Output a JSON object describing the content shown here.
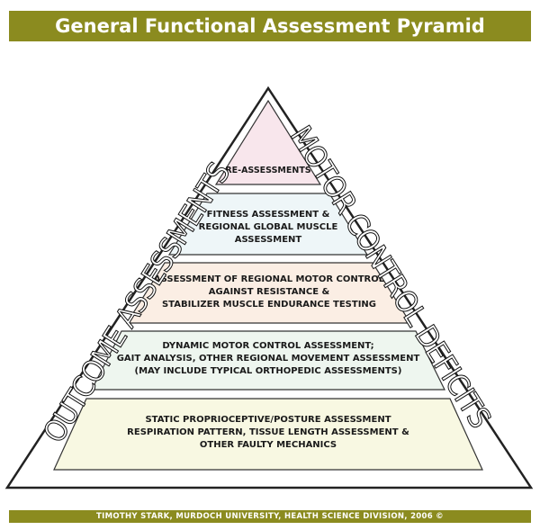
{
  "title": "General Functional Assessment Pyramid",
  "footer": "TIMOTHY STARK, MURDOCH UNIVERSITY, HEALTH SCIENCE DIVISION, 2006 ©",
  "side_labels": {
    "left": "OUTCOME ASSESSMENTS",
    "right": "MOTOR CONTROL DEFICITS"
  },
  "tiers": [
    {
      "text": "RE-ASSESSMENTS",
      "fill": "#f8e6ec"
    },
    {
      "text": "FITNESS ASSESSMENT &\nREGIONAL GLOBAL MUSCLE\nASSESSMENT",
      "fill": "#eef6f8"
    },
    {
      "text": "ASSESSMENT OF REGIONAL MOTOR CONTROL\nAGAINST RESISTANCE &\nSTABILIZER MUSCLE ENDURANCE TESTING",
      "fill": "#fbeee4"
    },
    {
      "text": "DYNAMIC MOTOR CONTROL ASSESSMENT;\nGAIT ANALYSIS, OTHER REGIONAL MOVEMENT ASSESSMENT\n(MAY INCLUDE TYPICAL ORTHOPEDIC ASSESSMENTS)",
      "fill": "#eef6ef"
    },
    {
      "text": "STATIC PROPRIOCEPTIVE/POSTURE ASSESSMENT\nRESPIRATION PATTERN, TISSUE LENGTH ASSESSMENT &\nOTHER FAULTY MECHANICS",
      "fill": "#f8f8e2"
    }
  ],
  "colors": {
    "bar": "#8b8b1f",
    "outline": "#222222"
  }
}
